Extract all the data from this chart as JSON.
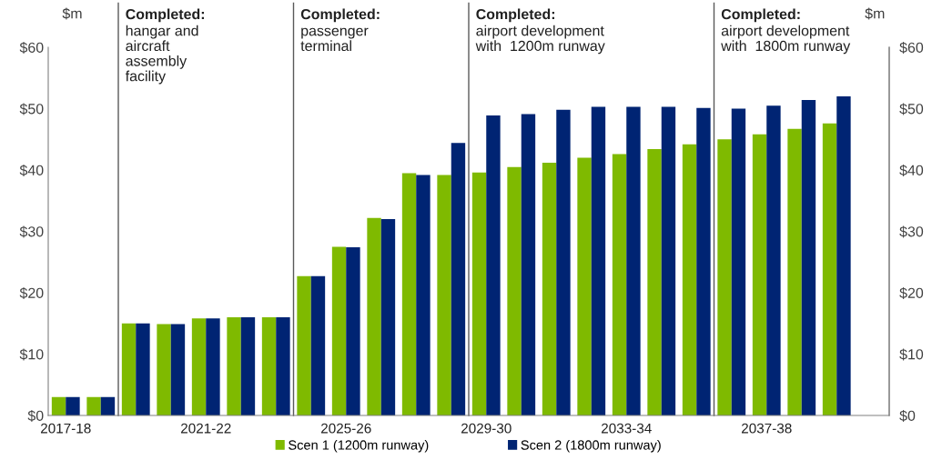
{
  "chart_data": {
    "type": "bar",
    "categories": [
      "2017-18",
      null,
      null,
      null,
      "2021-22",
      null,
      null,
      null,
      "2025-26",
      null,
      null,
      null,
      "2029-30",
      null,
      null,
      null,
      "2033-34",
      null,
      null,
      null,
      "2037-38",
      null,
      null
    ],
    "series": [
      {
        "name": "Scen 1 (1200m runway)",
        "color": "#7fba00",
        "values": [
          3,
          3,
          15.0,
          14.9,
          15.8,
          16.0,
          16.0,
          22.7,
          27.5,
          32.2,
          39.5,
          39.2,
          39.6,
          40.5,
          41.2,
          42.0,
          42.6,
          43.4,
          44.2,
          45.0,
          45.8,
          46.7,
          47.6
        ]
      },
      {
        "name": "Scen 2 (1800m runway)",
        "color": "#002473",
        "values": [
          3,
          3,
          15.0,
          14.9,
          15.8,
          16.0,
          16.0,
          22.7,
          27.4,
          32.0,
          39.2,
          44.4,
          48.9,
          49.1,
          49.8,
          50.3,
          50.3,
          50.3,
          50.1,
          50.0,
          50.5,
          51.4,
          52.0
        ]
      }
    ],
    "ylabel": "$m",
    "y2label": "$m",
    "ylim": [
      0,
      60
    ],
    "y2lim": [
      0,
      60
    ],
    "yticks": [
      {
        "value": 0,
        "label": "$0"
      },
      {
        "value": 10,
        "label": "$10"
      },
      {
        "value": 20,
        "label": "$20"
      },
      {
        "value": 30,
        "label": "$30"
      },
      {
        "value": 40,
        "label": "$40"
      },
      {
        "value": 50,
        "label": "$50"
      },
      {
        "value": 60,
        "label": "$60"
      }
    ],
    "y2ticks": [
      {
        "value": 0,
        "label": "$0"
      },
      {
        "value": 10,
        "label": "$10"
      },
      {
        "value": 20,
        "label": "$20"
      },
      {
        "value": 30,
        "label": "$30"
      },
      {
        "value": 40,
        "label": "$40"
      },
      {
        "value": 50,
        "label": "$50"
      },
      {
        "value": 60,
        "label": "$60"
      }
    ],
    "annotations": [
      "Completed:\nhangar and\naircraft\nassembly\nfacility",
      "Completed:\npassenger\nterminal",
      "Completed:\nairport development\nwith  1200m runway",
      "Completed:\nairport development\nwith  1800m runway"
    ],
    "grid": false,
    "legend": "bottom"
  }
}
